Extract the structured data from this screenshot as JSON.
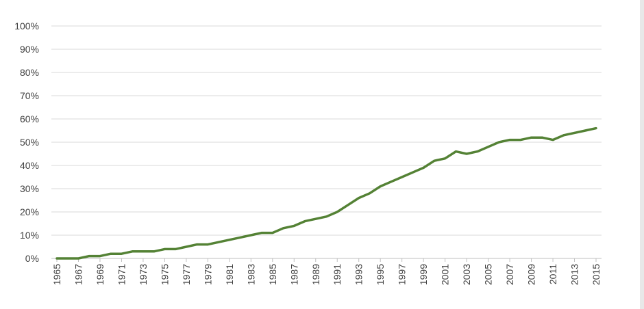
{
  "colors": {
    "series": "#548235",
    "grid": "#d9d9d9",
    "text": "#404040"
  },
  "chart_data": {
    "type": "line",
    "title": "",
    "xlabel": "",
    "ylabel": "",
    "ylim": [
      0,
      100
    ],
    "y_ticks": [
      "0%",
      "10%",
      "20%",
      "30%",
      "40%",
      "50%",
      "60%",
      "70%",
      "80%",
      "90%",
      "100%"
    ],
    "x_tick_labels": [
      "1965",
      "1967",
      "1969",
      "1971",
      "1973",
      "1975",
      "1977",
      "1979",
      "1981",
      "1983",
      "1985",
      "1987",
      "1989",
      "1991",
      "1993",
      "1995",
      "1997",
      "1999",
      "2001",
      "2003",
      "2005",
      "2007",
      "2009",
      "2011",
      "2013",
      "2015"
    ],
    "grid": true,
    "legend": "none",
    "x": [
      1965,
      1966,
      1967,
      1968,
      1969,
      1970,
      1971,
      1972,
      1973,
      1974,
      1975,
      1976,
      1977,
      1978,
      1979,
      1980,
      1981,
      1982,
      1983,
      1984,
      1985,
      1986,
      1987,
      1988,
      1989,
      1990,
      1991,
      1992,
      1993,
      1994,
      1995,
      1996,
      1997,
      1998,
      1999,
      2000,
      2001,
      2002,
      2003,
      2004,
      2005,
      2006,
      2007,
      2008,
      2009,
      2010,
      2011,
      2012,
      2013,
      2014,
      2015
    ],
    "series": [
      {
        "values": [
          0,
          0,
          0,
          1,
          1,
          2,
          2,
          3,
          3,
          3,
          4,
          4,
          5,
          6,
          6,
          7,
          8,
          9,
          10,
          11,
          11,
          13,
          14,
          16,
          17,
          18,
          20,
          23,
          26,
          28,
          31,
          33,
          35,
          37,
          39,
          42,
          43,
          46,
          45,
          46,
          48,
          50,
          51,
          51,
          52,
          52,
          51,
          53,
          54,
          55,
          56
        ]
      }
    ]
  }
}
